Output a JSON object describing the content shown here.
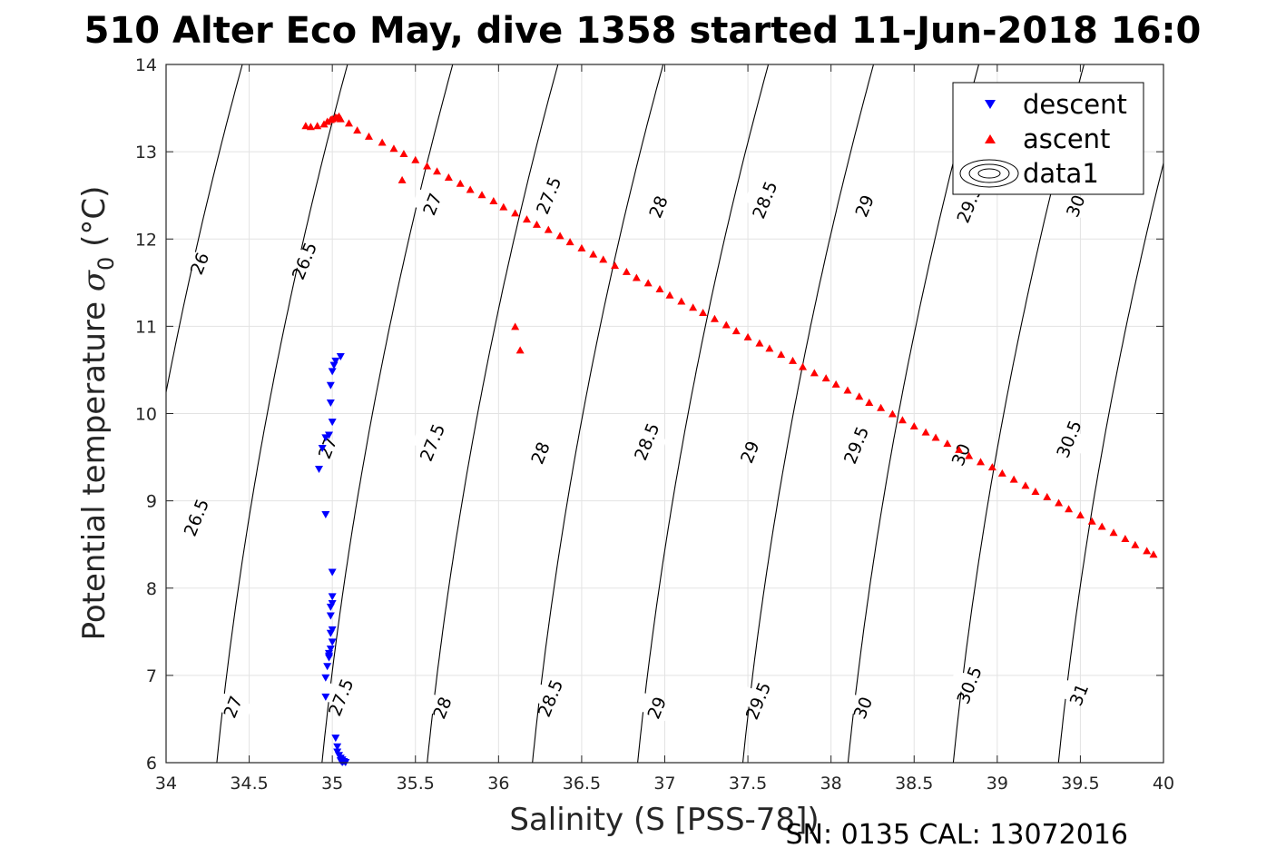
{
  "chart_data": {
    "type": "scatter",
    "title": "510 Alter Eco May, dive 1358 started 11-Jun-2018 16:0",
    "xlabel": "Salinity (S [PSS-78])",
    "ylabel_text": "Potential temperature ",
    "ylabel_symbol": "σ",
    "ylabel_sub": "0",
    "ylabel_unit": " (°C)",
    "footer": "SN: 0135  CAL: 13072016",
    "xlim": [
      34,
      40
    ],
    "ylim": [
      6,
      14
    ],
    "grid": true,
    "x_ticks": [
      "34",
      "34.5",
      "35",
      "35.5",
      "36",
      "36.5",
      "37",
      "37.5",
      "38",
      "38.5",
      "39",
      "39.5",
      "40"
    ],
    "y_ticks": [
      "6",
      "7",
      "8",
      "9",
      "10",
      "11",
      "12",
      "13",
      "14"
    ],
    "legend": {
      "position": "top-right",
      "entries": [
        {
          "label": "descent",
          "marker": "triangle-down",
          "color": "#0000ff"
        },
        {
          "label": "ascent",
          "marker": "triangle-up",
          "color": "#ff0000"
        },
        {
          "label": "data1",
          "marker": "contour",
          "color": "#000000"
        }
      ]
    },
    "contour_levels": [
      26,
      26.5,
      27,
      27.5,
      28,
      28.5,
      29,
      29.5,
      30,
      30.5,
      31
    ],
    "contour_labels": [
      {
        "text": "26",
        "s": 34.2,
        "t": 11.72
      },
      {
        "text": "26.5",
        "s": 34.83,
        "t": 11.75
      },
      {
        "text": "27",
        "s": 35.6,
        "t": 12.4
      },
      {
        "text": "27.5",
        "s": 36.3,
        "t": 12.5
      },
      {
        "text": "28",
        "s": 36.96,
        "t": 12.37
      },
      {
        "text": "28.5",
        "s": 37.6,
        "t": 12.45
      },
      {
        "text": "29",
        "s": 38.2,
        "t": 12.38
      },
      {
        "text": "29.5",
        "s": 38.83,
        "t": 12.4
      },
      {
        "text": "30",
        "s": 39.47,
        "t": 12.38
      },
      {
        "text": "26.5",
        "s": 34.18,
        "t": 8.81
      },
      {
        "text": "27",
        "s": 34.97,
        "t": 9.61
      },
      {
        "text": "27.5",
        "s": 35.6,
        "t": 9.67
      },
      {
        "text": "28",
        "s": 36.25,
        "t": 9.55
      },
      {
        "text": "28.5",
        "s": 36.89,
        "t": 9.68
      },
      {
        "text": "29",
        "s": 37.51,
        "t": 9.56
      },
      {
        "text": "29.5",
        "s": 38.15,
        "t": 9.64
      },
      {
        "text": "30",
        "s": 38.78,
        "t": 9.53
      },
      {
        "text": "30.5",
        "s": 39.43,
        "t": 9.71
      },
      {
        "text": "27",
        "s": 34.4,
        "t": 6.64
      },
      {
        "text": "27.5",
        "s": 35.05,
        "t": 6.75
      },
      {
        "text": "28",
        "s": 35.66,
        "t": 6.63
      },
      {
        "text": "28.5",
        "s": 36.31,
        "t": 6.74
      },
      {
        "text": "29",
        "s": 36.95,
        "t": 6.63
      },
      {
        "text": "29.5",
        "s": 37.56,
        "t": 6.71
      },
      {
        "text": "30",
        "s": 38.19,
        "t": 6.63
      },
      {
        "text": "30.5",
        "s": 38.83,
        "t": 6.89
      },
      {
        "text": "31",
        "s": 39.49,
        "t": 6.78
      }
    ],
    "series": [
      {
        "name": "descent",
        "marker": "triangle-down",
        "color": "#0000ff",
        "x": [
          35.05,
          35.02,
          35.01,
          35.0,
          34.99,
          34.99,
          35.0,
          34.98,
          34.96,
          34.94,
          34.92,
          34.96,
          35.0,
          35.0,
          35.0,
          34.99,
          34.99,
          35.0,
          34.99,
          35.0,
          34.99,
          34.98,
          34.98,
          34.97,
          34.96,
          34.96,
          34.98,
          35.02,
          35.03,
          35.03,
          35.04,
          35.05,
          35.06,
          35.05,
          35.07,
          35.08,
          35.06
        ],
        "y": [
          10.65,
          10.6,
          10.55,
          10.48,
          10.32,
          10.12,
          9.9,
          9.75,
          9.72,
          9.6,
          9.36,
          8.84,
          8.18,
          7.9,
          7.82,
          7.78,
          7.68,
          7.52,
          7.48,
          7.38,
          7.3,
          7.25,
          7.2,
          7.1,
          6.97,
          6.75,
          7.22,
          6.28,
          6.18,
          6.12,
          6.08,
          6.05,
          6.03,
          6.02,
          6.01,
          6.0,
          6.0
        ]
      },
      {
        "name": "ascent",
        "marker": "triangle-up",
        "color": "#ff0000",
        "x": [
          34.84,
          34.87,
          34.91,
          34.95,
          34.97,
          34.99,
          35.0,
          35.02,
          35.03,
          35.04,
          35.05,
          35.1,
          35.15,
          35.22,
          35.3,
          35.37,
          35.43,
          35.5,
          35.57,
          35.63,
          35.7,
          35.77,
          35.83,
          35.9,
          35.97,
          36.03,
          36.1,
          36.17,
          36.23,
          36.3,
          36.37,
          36.43,
          36.5,
          36.57,
          36.63,
          36.7,
          36.77,
          36.83,
          36.9,
          36.97,
          37.03,
          37.1,
          37.17,
          37.23,
          37.3,
          37.37,
          37.43,
          37.5,
          37.57,
          37.63,
          37.7,
          37.77,
          37.83,
          37.9,
          37.97,
          38.03,
          38.1,
          38.17,
          38.23,
          38.3,
          38.37,
          38.43,
          38.5,
          38.57,
          38.63,
          38.7,
          38.77,
          38.83,
          38.9,
          38.97,
          39.03,
          39.1,
          39.17,
          39.23,
          39.3,
          39.37,
          39.43,
          39.5,
          39.57,
          39.63,
          39.7,
          39.77,
          39.83,
          39.9,
          39.94,
          35.42,
          36.1,
          36.13
        ],
        "y": [
          13.3,
          13.29,
          13.3,
          13.32,
          13.35,
          13.37,
          13.38,
          13.4,
          13.39,
          13.41,
          13.38,
          13.33,
          13.25,
          13.18,
          13.11,
          13.04,
          12.98,
          12.91,
          12.84,
          12.78,
          12.71,
          12.64,
          12.57,
          12.51,
          12.44,
          12.37,
          12.3,
          12.23,
          12.17,
          12.11,
          12.04,
          11.97,
          11.9,
          11.83,
          11.77,
          11.7,
          11.63,
          11.56,
          11.5,
          11.43,
          11.36,
          11.29,
          11.22,
          11.16,
          11.09,
          11.02,
          10.95,
          10.88,
          10.81,
          10.75,
          10.68,
          10.61,
          10.54,
          10.47,
          10.41,
          10.34,
          10.27,
          10.2,
          10.13,
          10.07,
          10.0,
          9.93,
          9.86,
          9.79,
          9.73,
          9.66,
          9.59,
          9.52,
          9.45,
          9.39,
          9.32,
          9.25,
          9.18,
          9.11,
          9.05,
          8.98,
          8.91,
          8.84,
          8.77,
          8.71,
          8.64,
          8.57,
          8.5,
          8.43,
          8.39,
          12.68,
          11.0,
          10.73
        ]
      }
    ]
  }
}
